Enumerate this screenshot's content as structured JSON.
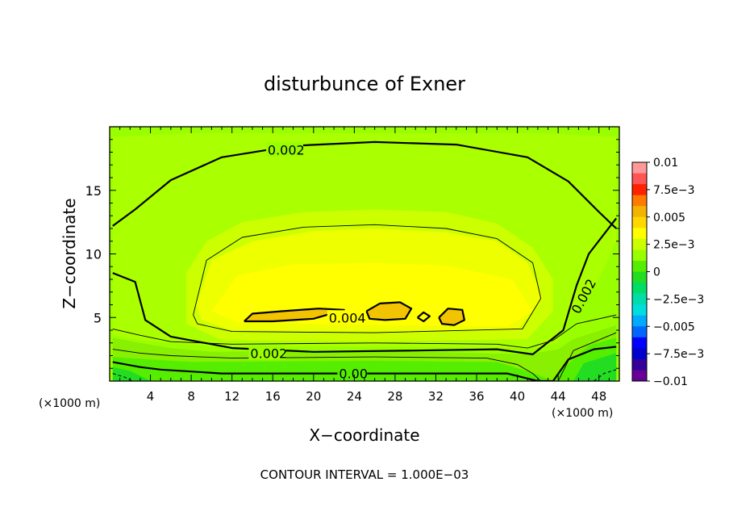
{
  "chart_data": {
    "type": "heatmap",
    "title": "disturbunce of Exner",
    "xlabel": "X−coordinate",
    "ylabel": "Z−coordinate",
    "x_unit_left": "(×1000 m)",
    "x_unit_right": "(×1000 m)",
    "footer": "CONTOUR INTERVAL = 1.000E−03",
    "xlim": [
      0,
      50
    ],
    "ylim": [
      0,
      20
    ],
    "x_ticks": [
      4,
      8,
      12,
      16,
      20,
      24,
      28,
      32,
      36,
      40,
      44,
      48
    ],
    "y_ticks": [
      5,
      10,
      15
    ],
    "x_tick_labels": [
      "4",
      "8",
      "12",
      "16",
      "20",
      "24",
      "28",
      "32",
      "36",
      "40",
      "44",
      "48"
    ],
    "y_tick_labels": [
      "5",
      "10",
      "15"
    ],
    "background_level": 0.002,
    "filled_regions": [
      {
        "level": 0.0025,
        "points": [
          [
            0.3,
            19.2
          ],
          [
            8,
            19.5
          ],
          [
            25,
            19.5
          ],
          [
            42,
            19.5
          ],
          [
            49.7,
            19.2
          ],
          [
            49.7,
            11
          ],
          [
            48,
            8
          ],
          [
            45,
            5
          ],
          [
            44,
            3
          ],
          [
            41,
            2.6
          ],
          [
            26,
            2.7
          ],
          [
            10,
            2.7
          ],
          [
            6,
            3
          ],
          [
            3,
            3.2
          ],
          [
            0.3,
            3.6
          ]
        ]
      },
      {
        "level": 0.003,
        "points": [
          [
            7.5,
            8.5
          ],
          [
            9.5,
            11
          ],
          [
            13,
            12.5
          ],
          [
            19,
            13.3
          ],
          [
            26,
            13.5
          ],
          [
            33,
            13.3
          ],
          [
            38,
            12.4
          ],
          [
            41.5,
            10.5
          ],
          [
            43.5,
            8
          ],
          [
            43.5,
            5.5
          ],
          [
            41,
            3.3
          ],
          [
            26,
            3.1
          ],
          [
            11,
            3.2
          ],
          [
            7.5,
            4.5
          ]
        ]
      },
      {
        "level": 0.0035,
        "points": [
          [
            8.5,
            6
          ],
          [
            10,
            9.5
          ],
          [
            14,
            11
          ],
          [
            20,
            11.8
          ],
          [
            26,
            12
          ],
          [
            33,
            11.7
          ],
          [
            38,
            11
          ],
          [
            41,
            9.3
          ],
          [
            42.5,
            6.5
          ],
          [
            40,
            4
          ],
          [
            26,
            3.9
          ],
          [
            12,
            4
          ],
          [
            9,
            4.8
          ]
        ]
      },
      {
        "level": 0.004,
        "points": [
          [
            10,
            5.5
          ],
          [
            12.5,
            8.3
          ],
          [
            18,
            9.2
          ],
          [
            26,
            9.3
          ],
          [
            33,
            9.1
          ],
          [
            39.5,
            8
          ],
          [
            41.5,
            5.5
          ],
          [
            39,
            4.3
          ],
          [
            26,
            4.4
          ],
          [
            12.5,
            4.6
          ]
        ]
      },
      {
        "level": 0.0045,
        "points": [
          [
            13.2,
            4.7
          ],
          [
            14,
            5.3
          ],
          [
            17,
            5.5
          ],
          [
            20.5,
            5.7
          ],
          [
            23,
            5.6
          ],
          [
            20,
            4.9
          ],
          [
            16,
            4.7
          ]
        ]
      },
      {
        "level": 0.0045,
        "points": [
          [
            25.2,
            5.5
          ],
          [
            26.5,
            6.1
          ],
          [
            28.5,
            6.2
          ],
          [
            29.6,
            5.7
          ],
          [
            29,
            4.9
          ],
          [
            27,
            4.8
          ],
          [
            25.5,
            4.9
          ]
        ]
      },
      {
        "level": 0.0045,
        "points": [
          [
            32.3,
            5.0
          ],
          [
            33.2,
            5.7
          ],
          [
            34.6,
            5.6
          ],
          [
            34.8,
            4.8
          ],
          [
            33.8,
            4.4
          ],
          [
            32.6,
            4.5
          ]
        ]
      },
      {
        "level": 0.0015,
        "points": [
          [
            0.3,
            3.4
          ],
          [
            3,
            3.0
          ],
          [
            6,
            2.6
          ],
          [
            10,
            2.3
          ],
          [
            26,
            2.4
          ],
          [
            41,
            2.1
          ],
          [
            44,
            2.5
          ],
          [
            45.5,
            3.3
          ],
          [
            49.7,
            4.4
          ],
          [
            49.7,
            0
          ],
          [
            0.3,
            0
          ]
        ]
      },
      {
        "level": 0.001,
        "points": [
          [
            0.3,
            1.9
          ],
          [
            4,
            1.7
          ],
          [
            8,
            1.5
          ],
          [
            26,
            1.6
          ],
          [
            38,
            1.5
          ],
          [
            42,
            0.5
          ],
          [
            43.5,
            0
          ],
          [
            44.5,
            1
          ],
          [
            47,
            2.8
          ],
          [
            49.7,
            3.4
          ],
          [
            49.7,
            0
          ],
          [
            0.3,
            0
          ]
        ]
      },
      {
        "level": 0.0005,
        "points": [
          [
            0.3,
            1.1
          ],
          [
            2,
            0.8
          ],
          [
            4,
            0
          ],
          [
            0.3,
            0
          ]
        ]
      },
      {
        "level": 0.0005,
        "points": [
          [
            45.5,
            0
          ],
          [
            46.5,
            1.4
          ],
          [
            49.7,
            2.2
          ],
          [
            49.7,
            0
          ]
        ]
      }
    ],
    "contour_lines": [
      {
        "label": "0.002",
        "bold": true,
        "points": [
          [
            0.3,
            12.2
          ],
          [
            2.5,
            13.5
          ],
          [
            6,
            15.8
          ],
          [
            11,
            17.6
          ],
          [
            18,
            18.5
          ],
          [
            26,
            18.8
          ],
          [
            34,
            18.6
          ],
          [
            41,
            17.6
          ],
          [
            45,
            15.7
          ],
          [
            48,
            13.3
          ],
          [
            49.7,
            12
          ]
        ],
        "label_at": [
          15.5,
          18.2
        ]
      },
      {
        "label": "0.002",
        "bold": true,
        "points": [
          [
            0.3,
            8.5
          ],
          [
            2.5,
            7.8
          ],
          [
            3.5,
            4.8
          ],
          [
            6,
            3.5
          ],
          [
            12,
            2.6
          ],
          [
            20,
            2.3
          ],
          [
            30,
            2.4
          ],
          [
            38,
            2.5
          ],
          [
            41.5,
            2.1
          ],
          [
            44.5,
            4
          ],
          [
            45.8,
            7.5
          ],
          [
            47,
            10
          ],
          [
            49.7,
            12.8
          ]
        ],
        "label_at": [
          13.8,
          2.2
        ]
      },
      {
        "label": "",
        "bold": false,
        "points": [
          [
            8.2,
            5.2
          ],
          [
            9.5,
            9.5
          ],
          [
            13,
            11.3
          ],
          [
            19,
            12.1
          ],
          [
            26,
            12.3
          ],
          [
            33,
            12
          ],
          [
            38,
            11.2
          ],
          [
            41.5,
            9.3
          ],
          [
            42.3,
            6.5
          ],
          [
            40.5,
            4.1
          ],
          [
            26,
            3.8
          ],
          [
            12,
            3.9
          ],
          [
            8.6,
            4.5
          ],
          [
            8.2,
            5.2
          ]
        ]
      },
      {
        "label": "",
        "bold": false,
        "points": [
          [
            0.3,
            4.1
          ],
          [
            3,
            3.6
          ],
          [
            6,
            3.1
          ],
          [
            12,
            2.9
          ],
          [
            26,
            3.0
          ],
          [
            38,
            2.9
          ],
          [
            41,
            2.6
          ],
          [
            43.5,
            3.2
          ],
          [
            45.8,
            4.5
          ],
          [
            49.7,
            5.2
          ]
        ]
      },
      {
        "label": "",
        "bold": false,
        "points": [
          [
            0.3,
            2.5
          ],
          [
            3,
            2.2
          ],
          [
            6,
            2.0
          ],
          [
            12,
            1.8
          ],
          [
            26,
            1.9
          ],
          [
            37,
            1.8
          ],
          [
            40,
            1.3
          ],
          [
            41.5,
            0.6
          ],
          [
            42.3,
            0
          ]
        ]
      },
      {
        "label": "0.00",
        "bold": true,
        "points": [
          [
            0.3,
            1.5
          ],
          [
            3,
            1.1
          ],
          [
            5,
            0.9
          ],
          [
            11,
            0.6
          ],
          [
            26,
            0.6
          ],
          [
            36,
            0.6
          ],
          [
            39,
            0.6
          ],
          [
            42,
            0
          ],
          [
            43.5,
            0
          ],
          [
            45,
            1.7
          ],
          [
            47.5,
            2.5
          ],
          [
            49.7,
            2.7
          ]
        ],
        "label_at": [
          22.5,
          0.6
        ]
      },
      {
        "label": "",
        "bold": false,
        "points": [
          [
            44,
            0
          ],
          [
            45.5,
            2.4
          ],
          [
            49.7,
            3.8
          ]
        ]
      },
      {
        "label": "0.004",
        "bold": true,
        "points": [
          [
            13.2,
            4.7
          ],
          [
            14,
            5.3
          ],
          [
            17,
            5.5
          ],
          [
            20.5,
            5.7
          ],
          [
            23,
            5.6
          ],
          [
            20,
            4.9
          ],
          [
            16,
            4.7
          ],
          [
            13.2,
            4.7
          ]
        ],
        "label_at": [
          21.5,
          5.0
        ]
      },
      {
        "label": "",
        "bold": true,
        "points": [
          [
            25.2,
            5.5
          ],
          [
            26.5,
            6.1
          ],
          [
            28.5,
            6.2
          ],
          [
            29.6,
            5.7
          ],
          [
            29,
            4.9
          ],
          [
            27,
            4.8
          ],
          [
            25.5,
            4.9
          ],
          [
            25.2,
            5.5
          ]
        ]
      },
      {
        "label": "",
        "bold": true,
        "points": [
          [
            32.3,
            5.0
          ],
          [
            33.2,
            5.7
          ],
          [
            34.6,
            5.6
          ],
          [
            34.8,
            4.8
          ],
          [
            33.8,
            4.4
          ],
          [
            32.6,
            4.5
          ],
          [
            32.3,
            5.0
          ]
        ]
      },
      {
        "label": "",
        "bold": true,
        "points": [
          [
            30.2,
            5.0
          ],
          [
            30.8,
            5.4
          ],
          [
            31.4,
            5.1
          ],
          [
            30.8,
            4.7
          ],
          [
            30.2,
            5.0
          ]
        ]
      }
    ],
    "dashed_lines": [
      {
        "points": [
          [
            0.3,
            0.6
          ],
          [
            1.5,
            0.3
          ],
          [
            2.2,
            0
          ]
        ]
      },
      {
        "points": [
          [
            47.5,
            0
          ],
          [
            48.5,
            0.6
          ],
          [
            49.7,
            0.9
          ]
        ]
      }
    ],
    "side_label": {
      "text": "0.002",
      "at": [
        46.9,
        6.5
      ]
    },
    "colorbar": {
      "labels": [
        "0.01",
        "7.5e−3",
        "0.005",
        "2.5e−3",
        "0",
        "−2.5e−3",
        "−0.005",
        "−7.5e−3",
        "−0.01"
      ],
      "colors": [
        "#ff9999",
        "#ff5555",
        "#ff2200",
        "#ff7a00",
        "#f2b400",
        "#ffd800",
        "#ffff00",
        "#ccff00",
        "#99ff00",
        "#55ee00",
        "#22dd22",
        "#00dd66",
        "#00ddaa",
        "#00dddd",
        "#00aaff",
        "#0066ff",
        "#0000ff",
        "#0000cc",
        "#330099",
        "#660099"
      ]
    },
    "level_colors": {
      "0.0005": "#22dd22",
      "0.001": "#55ee00",
      "0.0015": "#88f000",
      "0.002": "#99ff00",
      "0.0025": "#aaff00",
      "0.003": "#ccff00",
      "0.0035": "#eeff00",
      "0.004": "#ffff00",
      "0.0045": "#f2c300"
    }
  }
}
